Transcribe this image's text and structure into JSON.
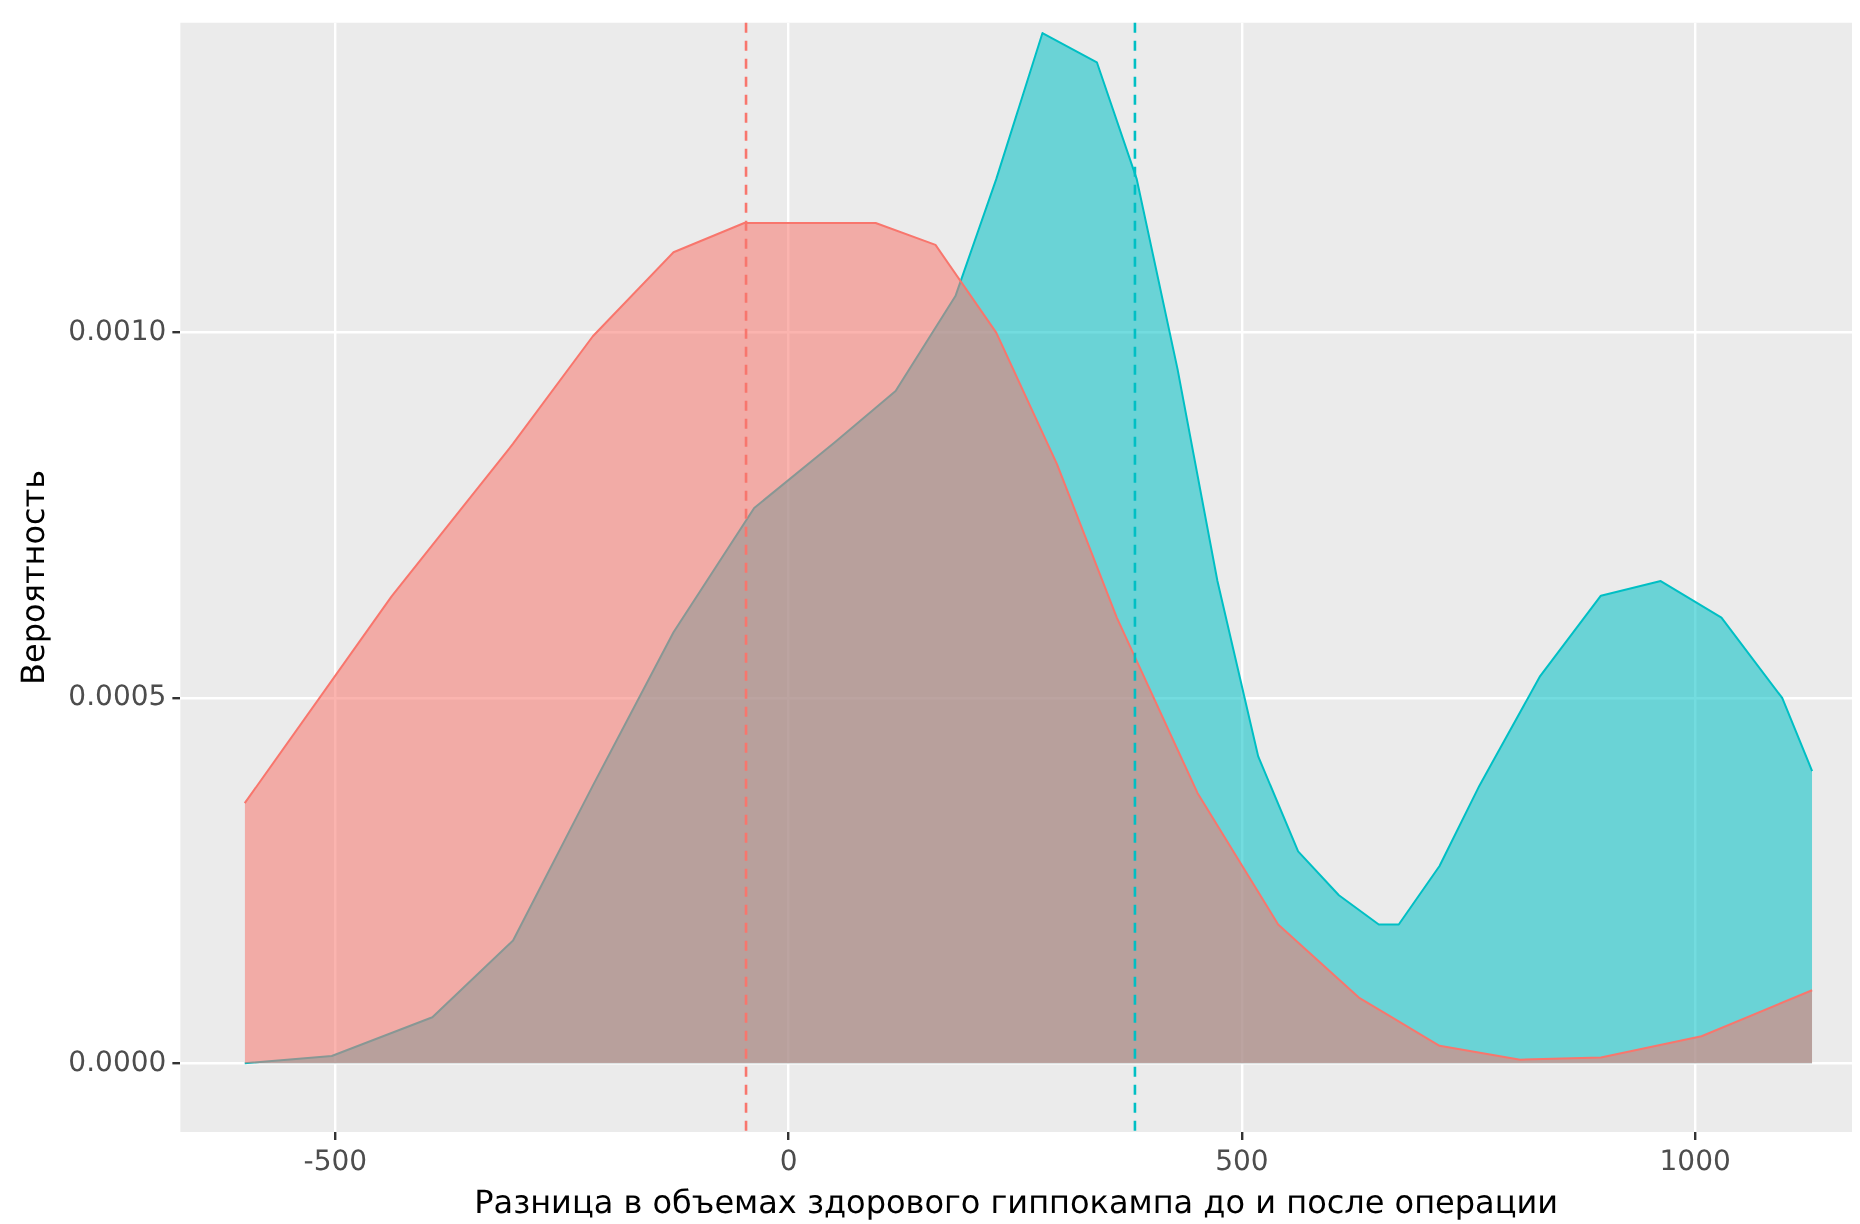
{
  "chart_data": {
    "type": "area",
    "xlabel": "Разница в объемах здорового гиппокампа до и после операции",
    "ylabel": "Вероятность",
    "xlim": [
      -671,
      1173
    ],
    "ylim": [
      -9.4e-05,
      0.001424
    ],
    "xticks": [
      -500,
      0,
      500,
      1000
    ],
    "yticks": [
      {
        "value": 0,
        "label": "0.0000"
      },
      {
        "value": 0.0005,
        "label": "0.0005"
      },
      {
        "value": 0.001,
        "label": "0.0010"
      }
    ],
    "grid": true,
    "legend": false,
    "series": [
      {
        "color": "#f8766d",
        "x": [
          -600,
          -438,
          -304,
          -216,
          -127,
          -49,
          96,
          162,
          229,
          296,
          362,
          451,
          540,
          629,
          718,
          807,
          896,
          1007,
          1129
        ],
        "values": [
          0.000356,
          0.000639,
          0.000848,
          0.000995,
          0.00111,
          0.00115,
          0.00115,
          0.00112,
          0.001,
          0.00082,
          0.00061,
          0.00037,
          0.00019,
          9e-05,
          2.4e-05,
          5e-06,
          8e-06,
          3.7e-05,
          0.0001
        ]
      },
      {
        "color": "#00bfc4",
        "x": [
          -600,
          -504,
          -393,
          -304,
          -216,
          -127,
          -38,
          51,
          118,
          184,
          229,
          280,
          340,
          384,
          429,
          473,
          518,
          562,
          607,
          651,
          673,
          718,
          762,
          829,
          896,
          962,
          1029,
          1096,
          1129
        ],
        "values": [
          0,
          1e-05,
          6.3e-05,
          0.000168,
          0.00038,
          0.00059,
          0.00076,
          0.00085,
          0.00092,
          0.00105,
          0.00121,
          0.00141,
          0.00137,
          0.00121,
          0.00095,
          0.00066,
          0.00042,
          0.00029,
          0.00023,
          0.00019,
          0.00019,
          0.00027,
          0.00038,
          0.00053,
          0.00064,
          0.00066,
          0.00061,
          0.0005,
          0.0004
        ]
      }
    ],
    "ref_lines": [
      {
        "axis": "x",
        "value": -47,
        "color": "#f8766d",
        "line_style": "dashed"
      },
      {
        "axis": "x",
        "value": 382,
        "color": "#00bfc4",
        "line_style": "dashed"
      }
    ]
  }
}
